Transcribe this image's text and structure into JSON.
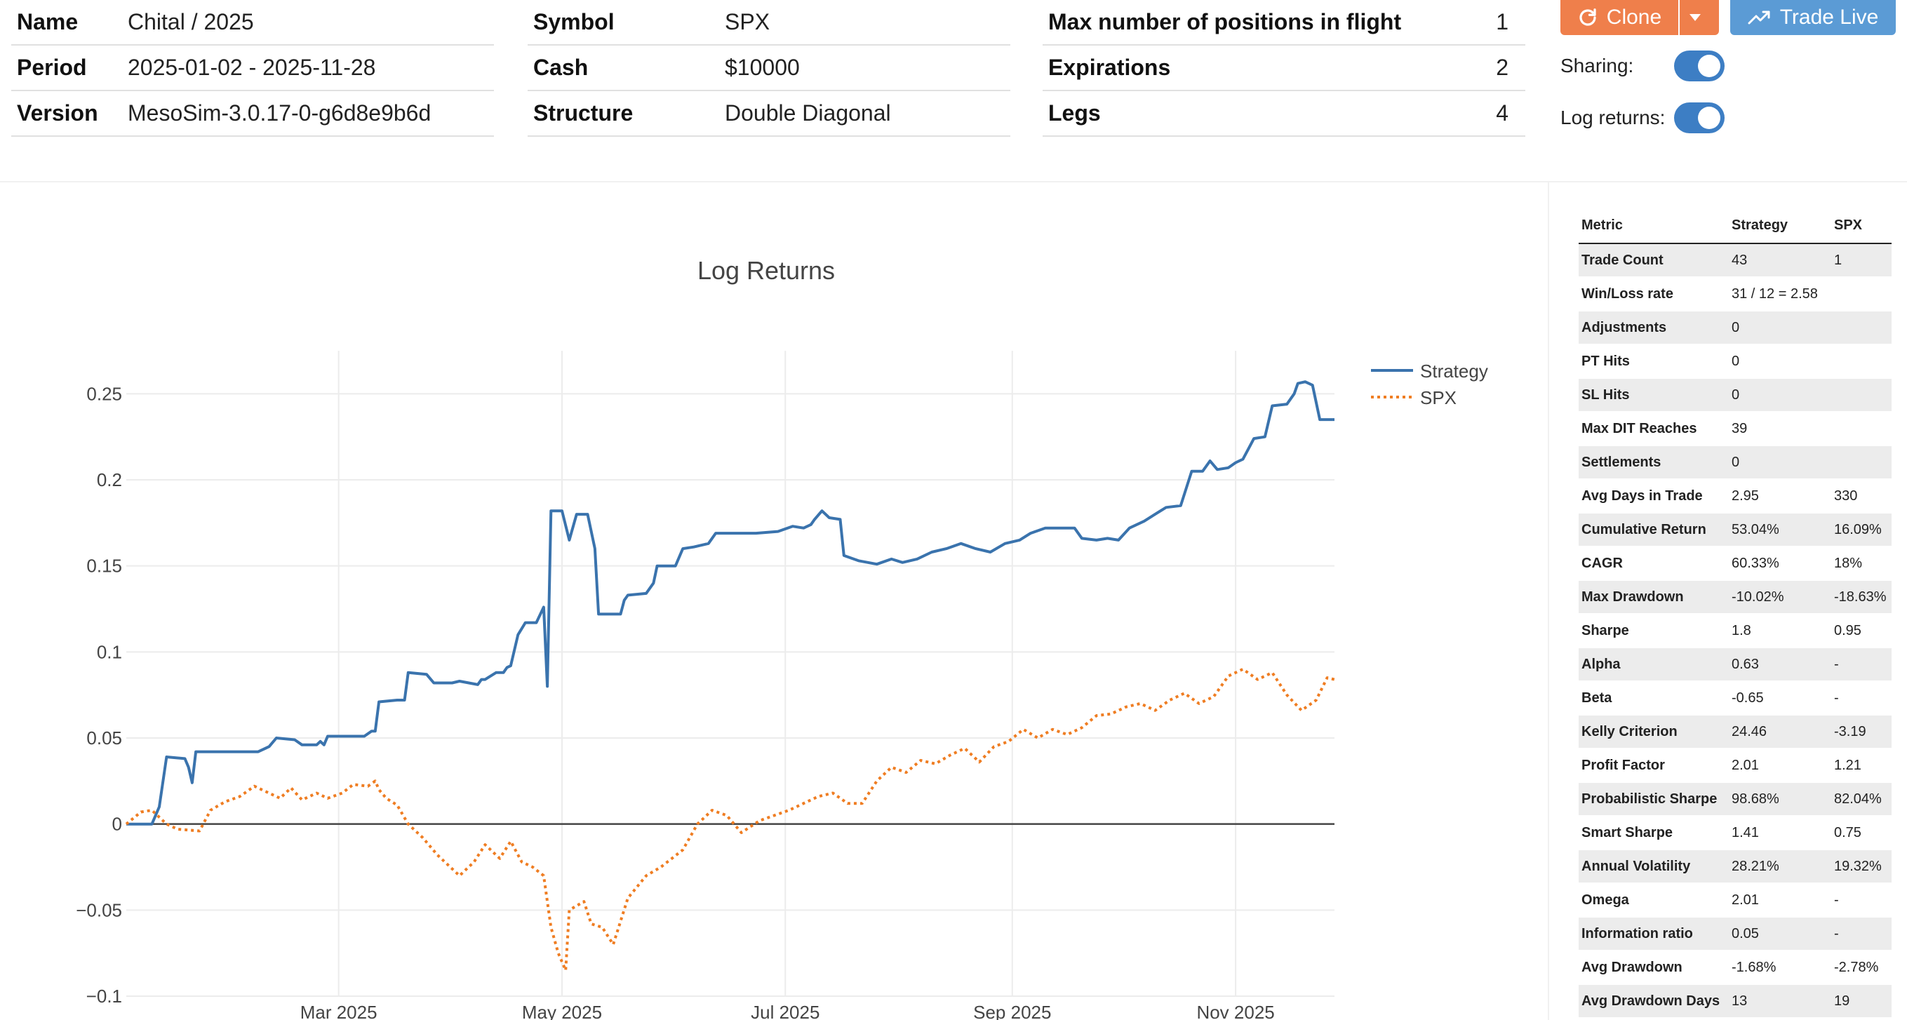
{
  "info": {
    "left": [
      {
        "label": "Name",
        "value": "Chital / 2025"
      },
      {
        "label": "Period",
        "value": "2025-01-02 - 2025-11-28"
      },
      {
        "label": "Version",
        "value": "MesoSim-3.0.17-0-g6d8e9b6d"
      }
    ],
    "middle": [
      {
        "label": "Symbol",
        "value": "SPX"
      },
      {
        "label": "Cash",
        "value": "$10000"
      },
      {
        "label": "Structure",
        "value": "Double Diagonal"
      }
    ],
    "right": [
      {
        "label": "Max number of positions in flight",
        "value": "1"
      },
      {
        "label": "Expirations",
        "value": "2"
      },
      {
        "label": "Legs",
        "value": "4"
      }
    ]
  },
  "actions": {
    "clone_label": "Clone",
    "trade_live_label": "Trade Live",
    "sharing_label": "Sharing:",
    "log_returns_label": "Log returns:",
    "sharing_on": true,
    "log_returns_on": true
  },
  "colors": {
    "strategy": "#3a73ad",
    "spx": "#ef7d22",
    "clone": "#ef7f4b",
    "trade_live": "#5b9bd5",
    "toggle": "#3d7ec4"
  },
  "chart_data": {
    "type": "line",
    "title": "Log Returns",
    "x_ticks": [
      "Mar 2025",
      "May 2025",
      "Jul 2025",
      "Sep 2025",
      "Nov 2025"
    ],
    "x_tick_dates": [
      "2025-03-01",
      "2025-05-01",
      "2025-07-01",
      "2025-09-01",
      "2025-11-01"
    ],
    "x_range": [
      "2025-01-02",
      "2025-11-28"
    ],
    "y_ticks": [
      "0.25",
      "0.2",
      "0.15",
      "0.1",
      "0.05",
      "0",
      "−0.05",
      "−0.1"
    ],
    "y_tick_values": [
      0.25,
      0.2,
      0.15,
      0.1,
      0.05,
      0,
      -0.05,
      -0.1
    ],
    "y_range": [
      -0.1,
      0.275
    ],
    "grid": true,
    "legend": "top-right",
    "series": [
      {
        "name": "Strategy",
        "style": "solid",
        "points": [
          [
            "2025-01-02",
            0
          ],
          [
            "2025-01-09",
            0
          ],
          [
            "2025-01-11",
            0.01
          ],
          [
            "2025-01-13",
            0.039
          ],
          [
            "2025-01-18",
            0.038
          ],
          [
            "2025-01-19",
            0.033
          ],
          [
            "2025-01-20",
            0.024
          ],
          [
            "2025-01-21",
            0.042
          ],
          [
            "2025-01-30",
            0.042
          ],
          [
            "2025-02-07",
            0.042
          ],
          [
            "2025-02-10",
            0.045
          ],
          [
            "2025-02-12",
            0.05
          ],
          [
            "2025-02-17",
            0.049
          ],
          [
            "2025-02-19",
            0.046
          ],
          [
            "2025-02-23",
            0.046
          ],
          [
            "2025-02-24",
            0.048
          ],
          [
            "2025-02-25",
            0.046
          ],
          [
            "2025-02-26",
            0.051
          ],
          [
            "2025-03-08",
            0.051
          ],
          [
            "2025-03-10",
            0.054
          ],
          [
            "2025-03-11",
            0.054
          ],
          [
            "2025-03-12",
            0.071
          ],
          [
            "2025-03-17",
            0.072
          ],
          [
            "2025-03-19",
            0.072
          ],
          [
            "2025-03-20",
            0.088
          ],
          [
            "2025-03-25",
            0.087
          ],
          [
            "2025-03-27",
            0.082
          ],
          [
            "2025-04-01",
            0.082
          ],
          [
            "2025-04-03",
            0.083
          ],
          [
            "2025-04-08",
            0.081
          ],
          [
            "2025-04-09",
            0.084
          ],
          [
            "2025-04-10",
            0.084
          ],
          [
            "2025-04-13",
            0.088
          ],
          [
            "2025-04-15",
            0.088
          ],
          [
            "2025-04-16",
            0.091
          ],
          [
            "2025-04-17",
            0.092
          ],
          [
            "2025-04-19",
            0.11
          ],
          [
            "2025-04-21",
            0.117
          ],
          [
            "2025-04-24",
            0.117
          ],
          [
            "2025-04-26",
            0.126
          ],
          [
            "2025-04-27",
            0.08
          ],
          [
            "2025-04-28",
            0.182
          ],
          [
            "2025-05-01",
            0.182
          ],
          [
            "2025-05-03",
            0.165
          ],
          [
            "2025-05-05",
            0.18
          ],
          [
            "2025-05-08",
            0.18
          ],
          [
            "2025-05-10",
            0.16
          ],
          [
            "2025-05-11",
            0.122
          ],
          [
            "2025-05-17",
            0.122
          ],
          [
            "2025-05-18",
            0.13
          ],
          [
            "2025-05-19",
            0.133
          ],
          [
            "2025-05-24",
            0.134
          ],
          [
            "2025-05-26",
            0.14
          ],
          [
            "2025-05-27",
            0.15
          ],
          [
            "2025-06-01",
            0.15
          ],
          [
            "2025-06-03",
            0.16
          ],
          [
            "2025-06-06",
            0.161
          ],
          [
            "2025-06-10",
            0.163
          ],
          [
            "2025-06-12",
            0.169
          ],
          [
            "2025-06-23",
            0.169
          ],
          [
            "2025-06-29",
            0.17
          ],
          [
            "2025-07-03",
            0.173
          ],
          [
            "2025-07-06",
            0.172
          ],
          [
            "2025-07-08",
            0.174
          ],
          [
            "2025-07-09",
            0.177
          ],
          [
            "2025-07-11",
            0.182
          ],
          [
            "2025-07-13",
            0.178
          ],
          [
            "2025-07-16",
            0.177
          ],
          [
            "2025-07-17",
            0.156
          ],
          [
            "2025-07-21",
            0.153
          ],
          [
            "2025-07-26",
            0.151
          ],
          [
            "2025-07-30",
            0.154
          ],
          [
            "2025-08-02",
            0.152
          ],
          [
            "2025-08-06",
            0.154
          ],
          [
            "2025-08-10",
            0.158
          ],
          [
            "2025-08-14",
            0.16
          ],
          [
            "2025-08-18",
            0.163
          ],
          [
            "2025-08-22",
            0.16
          ],
          [
            "2025-08-26",
            0.158
          ],
          [
            "2025-08-30",
            0.163
          ],
          [
            "2025-09-03",
            0.165
          ],
          [
            "2025-09-06",
            0.169
          ],
          [
            "2025-09-10",
            0.172
          ],
          [
            "2025-09-14",
            0.172
          ],
          [
            "2025-09-18",
            0.172
          ],
          [
            "2025-09-20",
            0.166
          ],
          [
            "2025-09-24",
            0.165
          ],
          [
            "2025-09-27",
            0.166
          ],
          [
            "2025-09-30",
            0.165
          ],
          [
            "2025-10-03",
            0.172
          ],
          [
            "2025-10-07",
            0.176
          ],
          [
            "2025-10-10",
            0.18
          ],
          [
            "2025-10-13",
            0.184
          ],
          [
            "2025-10-17",
            0.185
          ],
          [
            "2025-10-20",
            0.205
          ],
          [
            "2025-10-23",
            0.205
          ],
          [
            "2025-10-25",
            0.211
          ],
          [
            "2025-10-27",
            0.206
          ],
          [
            "2025-10-30",
            0.207
          ],
          [
            "2025-11-01",
            0.21
          ],
          [
            "2025-11-03",
            0.212
          ],
          [
            "2025-11-06",
            0.224
          ],
          [
            "2025-11-09",
            0.225
          ],
          [
            "2025-11-11",
            0.243
          ],
          [
            "2025-11-15",
            0.244
          ],
          [
            "2025-11-17",
            0.25
          ],
          [
            "2025-11-18",
            0.256
          ],
          [
            "2025-11-20",
            0.257
          ],
          [
            "2025-11-22",
            0.255
          ],
          [
            "2025-11-24",
            0.235
          ],
          [
            "2025-11-28",
            0.235
          ]
        ]
      },
      {
        "name": "SPX",
        "style": "dotted",
        "points": [
          [
            "2025-01-02",
            0
          ],
          [
            "2025-01-06",
            0.007
          ],
          [
            "2025-01-09",
            0.008
          ],
          [
            "2025-01-13",
            0
          ],
          [
            "2025-01-16",
            -0.003
          ],
          [
            "2025-01-22",
            -0.004
          ],
          [
            "2025-01-25",
            0.008
          ],
          [
            "2025-01-29",
            0.013
          ],
          [
            "2025-02-02",
            0.016
          ],
          [
            "2025-02-06",
            0.022
          ],
          [
            "2025-02-09",
            0.019
          ],
          [
            "2025-02-13",
            0.015
          ],
          [
            "2025-02-16",
            0.021
          ],
          [
            "2025-02-19",
            0.014
          ],
          [
            "2025-02-23",
            0.018
          ],
          [
            "2025-02-26",
            0.015
          ],
          [
            "2025-03-02",
            0.018
          ],
          [
            "2025-03-05",
            0.023
          ],
          [
            "2025-03-09",
            0.022
          ],
          [
            "2025-03-11",
            0.025
          ],
          [
            "2025-03-12",
            0.02
          ],
          [
            "2025-03-14",
            0.015
          ],
          [
            "2025-03-17",
            0.011
          ],
          [
            "2025-03-20",
            0
          ],
          [
            "2025-03-24",
            -0.008
          ],
          [
            "2025-03-28",
            -0.018
          ],
          [
            "2025-04-03",
            -0.03
          ],
          [
            "2025-04-07",
            -0.022
          ],
          [
            "2025-04-10",
            -0.012
          ],
          [
            "2025-04-14",
            -0.02
          ],
          [
            "2025-04-17",
            -0.01
          ],
          [
            "2025-04-20",
            -0.022
          ],
          [
            "2025-04-23",
            -0.025
          ],
          [
            "2025-04-26",
            -0.03
          ],
          [
            "2025-04-28",
            -0.06
          ],
          [
            "2025-04-30",
            -0.075
          ],
          [
            "2025-05-02",
            -0.085
          ],
          [
            "2025-05-03",
            -0.05
          ],
          [
            "2025-05-07",
            -0.045
          ],
          [
            "2025-05-09",
            -0.058
          ],
          [
            "2025-05-12",
            -0.06
          ],
          [
            "2025-05-15",
            -0.07
          ],
          [
            "2025-05-19",
            -0.043
          ],
          [
            "2025-05-24",
            -0.03
          ],
          [
            "2025-05-28",
            -0.025
          ],
          [
            "2025-06-03",
            -0.015
          ],
          [
            "2025-06-07",
            0
          ],
          [
            "2025-06-11",
            0.008
          ],
          [
            "2025-06-15",
            0.005
          ],
          [
            "2025-06-19",
            -0.005
          ],
          [
            "2025-06-24",
            0.002
          ],
          [
            "2025-06-28",
            0.005
          ],
          [
            "2025-07-02",
            0.008
          ],
          [
            "2025-07-06",
            0.012
          ],
          [
            "2025-07-10",
            0.016
          ],
          [
            "2025-07-14",
            0.018
          ],
          [
            "2025-07-18",
            0.012
          ],
          [
            "2025-07-22",
            0.012
          ],
          [
            "2025-07-26",
            0.025
          ],
          [
            "2025-07-30",
            0.033
          ],
          [
            "2025-08-03",
            0.03
          ],
          [
            "2025-08-07",
            0.037
          ],
          [
            "2025-08-11",
            0.035
          ],
          [
            "2025-08-15",
            0.04
          ],
          [
            "2025-08-19",
            0.044
          ],
          [
            "2025-08-23",
            0.036
          ],
          [
            "2025-08-27",
            0.045
          ],
          [
            "2025-08-31",
            0.048
          ],
          [
            "2025-09-04",
            0.055
          ],
          [
            "2025-09-08",
            0.05
          ],
          [
            "2025-09-12",
            0.055
          ],
          [
            "2025-09-16",
            0.052
          ],
          [
            "2025-09-20",
            0.056
          ],
          [
            "2025-09-24",
            0.063
          ],
          [
            "2025-09-28",
            0.064
          ],
          [
            "2025-10-02",
            0.068
          ],
          [
            "2025-10-06",
            0.07
          ],
          [
            "2025-10-10",
            0.066
          ],
          [
            "2025-10-14",
            0.072
          ],
          [
            "2025-10-18",
            0.076
          ],
          [
            "2025-10-22",
            0.07
          ],
          [
            "2025-10-26",
            0.074
          ],
          [
            "2025-10-30",
            0.086
          ],
          [
            "2025-11-03",
            0.09
          ],
          [
            "2025-11-07",
            0.084
          ],
          [
            "2025-11-11",
            0.088
          ],
          [
            "2025-11-15",
            0.075
          ],
          [
            "2025-11-19",
            0.066
          ],
          [
            "2025-11-23",
            0.072
          ],
          [
            "2025-11-26",
            0.085
          ],
          [
            "2025-11-28",
            0.084
          ]
        ]
      }
    ]
  },
  "metrics": {
    "headers": [
      "Metric",
      "Strategy",
      "SPX"
    ],
    "rows": [
      [
        "Trade Count",
        "43",
        "1"
      ],
      [
        "Win/Loss rate",
        "31 / 12 = 2.58",
        ""
      ],
      [
        "Adjustments",
        "0",
        ""
      ],
      [
        "PT Hits",
        "0",
        ""
      ],
      [
        "SL Hits",
        "0",
        ""
      ],
      [
        "Max DIT Reaches",
        "39",
        ""
      ],
      [
        "Settlements",
        "0",
        ""
      ],
      [
        "Avg Days in Trade",
        "2.95",
        "330"
      ],
      [
        "Cumulative Return",
        "53.04%",
        "16.09%"
      ],
      [
        "CAGR",
        "60.33%",
        "18%"
      ],
      [
        "Max Drawdown",
        "-10.02%",
        "-18.63%"
      ],
      [
        "Sharpe",
        "1.8",
        "0.95"
      ],
      [
        "Alpha",
        "0.63",
        "-"
      ],
      [
        "Beta",
        "-0.65",
        "-"
      ],
      [
        "Kelly Criterion",
        "24.46",
        "-3.19"
      ],
      [
        "Profit Factor",
        "2.01",
        "1.21"
      ],
      [
        "Probabilistic Sharpe",
        "98.68%",
        "82.04%"
      ],
      [
        "Smart Sharpe",
        "1.41",
        "0.75"
      ],
      [
        "Annual Volatility",
        "28.21%",
        "19.32%"
      ],
      [
        "Omega",
        "2.01",
        "-"
      ],
      [
        "Information ratio",
        "0.05",
        "-"
      ],
      [
        "Avg Drawdown",
        "-1.68%",
        "-2.78%"
      ],
      [
        "Avg Drawdown Days",
        "13",
        "19"
      ]
    ]
  }
}
